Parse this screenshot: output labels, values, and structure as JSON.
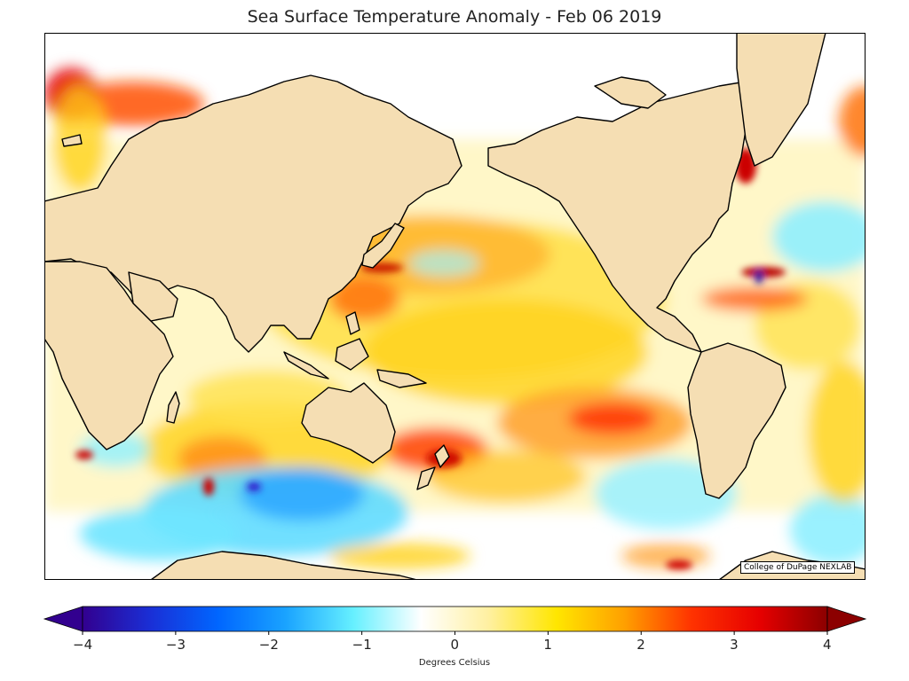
{
  "title": "Sea Surface Temperature Anomaly - Feb 06 2019",
  "credit": "College of DuPage NEXLAB",
  "colorbar": {
    "label": "Degrees Celsius",
    "min": -4,
    "max": 4,
    "ticks": [
      "−4",
      "−3",
      "−2",
      "−1",
      "0",
      "1",
      "2",
      "3",
      "4"
    ],
    "extend": "both",
    "colors": [
      "#32008f",
      "#1a2fd6",
      "#0066ff",
      "#1aa3ff",
      "#66f0ff",
      "#ffffff",
      "#fff0a0",
      "#ffe600",
      "#ffa000",
      "#ff3200",
      "#e60000",
      "#8c0000"
    ]
  },
  "map": {
    "projection": "Miller cylindrical, centered on the Pacific",
    "land_color": "#f5deb3",
    "coastline_color": "#000000"
  }
}
